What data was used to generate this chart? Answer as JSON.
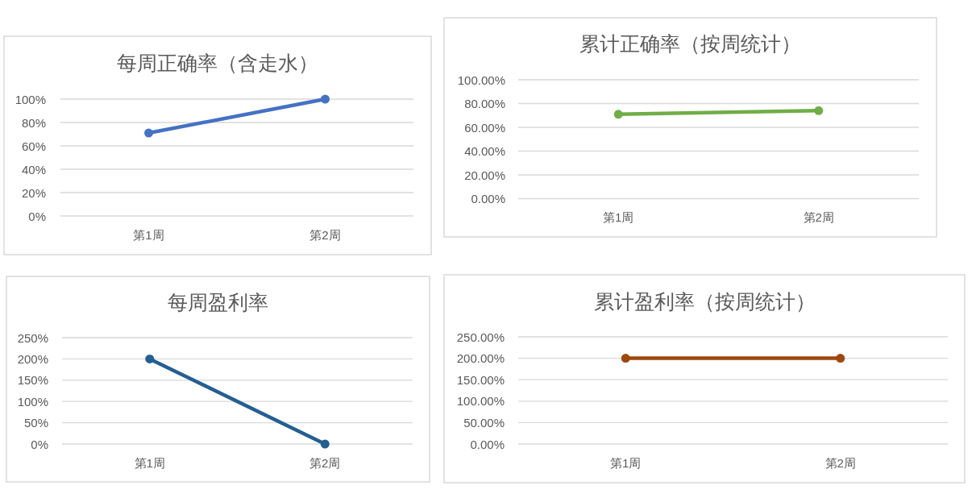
{
  "chart_data": [
    {
      "type": "line",
      "title": "每周正确率（含走水）",
      "categories": [
        "第1周",
        "第2周"
      ],
      "series": [
        {
          "color": "#4472c4",
          "values": [
            71,
            100
          ]
        }
      ],
      "ylim": [
        0,
        100
      ],
      "yticks": [
        {
          "value": 0,
          "label": "0%"
        },
        {
          "value": 20,
          "label": "20%"
        },
        {
          "value": 40,
          "label": "40%"
        },
        {
          "value": 60,
          "label": "60%"
        },
        {
          "value": 80,
          "label": "80%"
        },
        {
          "value": 100,
          "label": "100%"
        }
      ],
      "grid": "y",
      "marker": "circle",
      "line_style": "solid"
    },
    {
      "type": "line",
      "title": "累计正确率（按周统计）",
      "categories": [
        "第1周",
        "第2周"
      ],
      "series": [
        {
          "color": "#70ad47",
          "values": [
            71,
            74
          ]
        }
      ],
      "ylim": [
        0,
        100
      ],
      "yticks": [
        {
          "value": 0,
          "label": "0.00%"
        },
        {
          "value": 20,
          "label": "20.00%"
        },
        {
          "value": 40,
          "label": "40.00%"
        },
        {
          "value": 60,
          "label": "60.00%"
        },
        {
          "value": 80,
          "label": "80.00%"
        },
        {
          "value": 100,
          "label": "100.00%"
        }
      ],
      "grid": "y",
      "marker": "circle",
      "line_style": "solid"
    },
    {
      "type": "line",
      "title": "每周盈利率",
      "categories": [
        "第1周",
        "第2周"
      ],
      "series": [
        {
          "color": "#255e91",
          "values": [
            200,
            0
          ]
        }
      ],
      "ylim": [
        0,
        250
      ],
      "yticks": [
        {
          "value": 0,
          "label": "0%"
        },
        {
          "value": 50,
          "label": "50%"
        },
        {
          "value": 100,
          "label": "100%"
        },
        {
          "value": 150,
          "label": "150%"
        },
        {
          "value": 200,
          "label": "200%"
        },
        {
          "value": 250,
          "label": "250%"
        }
      ],
      "grid": "y",
      "marker": "circle",
      "line_style": "solid"
    },
    {
      "type": "line",
      "title": "累计盈利率（按周统计）",
      "categories": [
        "第1周",
        "第2周"
      ],
      "series": [
        {
          "color": "#9e480e",
          "values": [
            200,
            200
          ]
        }
      ],
      "ylim": [
        0,
        250
      ],
      "yticks": [
        {
          "value": 0,
          "label": "0.00%"
        },
        {
          "value": 50,
          "label": "50.00%"
        },
        {
          "value": 100,
          "label": "100.00%"
        },
        {
          "value": 150,
          "label": "150.00%"
        },
        {
          "value": 200,
          "label": "200.00%"
        },
        {
          "value": 250,
          "label": "250.00%"
        }
      ],
      "grid": "y",
      "marker": "circle",
      "line_style": "solid"
    }
  ]
}
